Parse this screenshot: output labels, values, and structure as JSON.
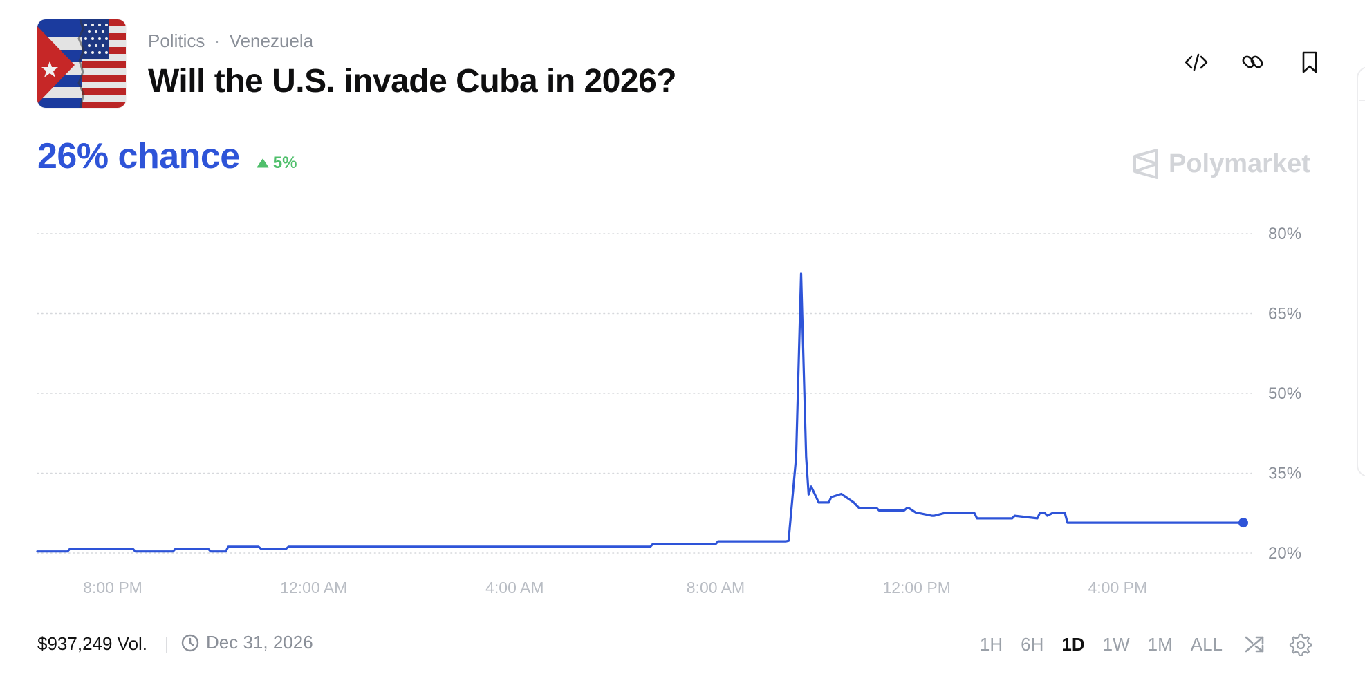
{
  "header": {
    "category": "Politics",
    "subcategory": "Venezuela",
    "separator": "·",
    "title": "Will the U.S. invade Cuba in 2026?"
  },
  "stats": {
    "chance": "26% chance",
    "change": "5%",
    "change_direction": "up",
    "brand": "Polymarket"
  },
  "colors": {
    "accent": "#2e54d8",
    "positive": "#4fbf6b",
    "muted": "#8a8f98"
  },
  "icons": {
    "embed": "code-icon",
    "link": "link-icon",
    "bookmark": "bookmark-icon",
    "clock": "clock-icon",
    "shuffle": "shuffle-icon",
    "settings": "gear-icon"
  },
  "footer": {
    "volume": "$937,249 Vol.",
    "end_date": "Dec 31, 2026",
    "ranges": [
      "1H",
      "6H",
      "1D",
      "1W",
      "1M",
      "ALL"
    ],
    "active_range": "1D"
  },
  "chart_data": {
    "type": "line",
    "title": "",
    "xlabel": "",
    "ylabel": "",
    "y_ticks": [
      "20%",
      "35%",
      "50%",
      "65%",
      "80%"
    ],
    "x_ticks": [
      "8:00 PM",
      "12:00 AM",
      "4:00 AM",
      "8:00 AM",
      "12:00 PM",
      "4:00 PM"
    ],
    "ylim": [
      20,
      80
    ],
    "grid": "horizontal-dotted",
    "hours_since_chart_start": [
      0,
      0.6,
      0.65,
      1.9,
      1.95,
      2.7,
      2.75,
      3.4,
      3.45,
      3.75,
      3.8,
      4.4,
      4.45,
      4.95,
      5.0,
      12.2,
      12.25,
      13.5,
      13.55,
      14.9,
      14.95,
      15.1,
      15.2,
      15.3,
      15.35,
      15.4,
      15.55,
      15.65,
      15.75,
      15.8,
      16.0,
      16.25,
      16.35,
      16.5,
      16.55,
      16.7,
      16.75,
      17.25,
      17.3,
      17.35,
      17.5,
      17.55,
      17.8,
      17.85,
      18.05,
      18.1,
      18.45,
      18.5,
      18.65,
      18.7,
      19.4,
      19.45,
      19.9,
      19.95,
      20.05,
      20.1,
      20.2,
      20.25,
      20.45,
      20.5,
      24.0
    ],
    "series": [
      {
        "values": [
          20.3,
          20.3,
          20.8,
          20.8,
          20.3,
          20.3,
          20.8,
          20.8,
          20.3,
          20.3,
          21.2,
          21.2,
          20.8,
          20.8,
          21.2,
          21.2,
          21.7,
          21.7,
          22.2,
          22.2,
          22.3,
          38,
          72.5,
          38,
          31,
          32.5,
          29.5,
          29.5,
          29.5,
          30.5,
          31.1,
          29.5,
          28.5,
          28.5,
          28.5,
          28.5,
          28.0,
          28.0,
          28.4,
          28.4,
          27.5,
          27.5,
          27.0,
          27.0,
          27.5,
          27.5,
          27.5,
          27.5,
          27.5,
          26.5,
          26.5,
          27.0,
          26.5,
          27.5,
          27.5,
          27.0,
          27.5,
          27.5,
          27.5,
          25.7,
          25.7
        ]
      }
    ]
  }
}
